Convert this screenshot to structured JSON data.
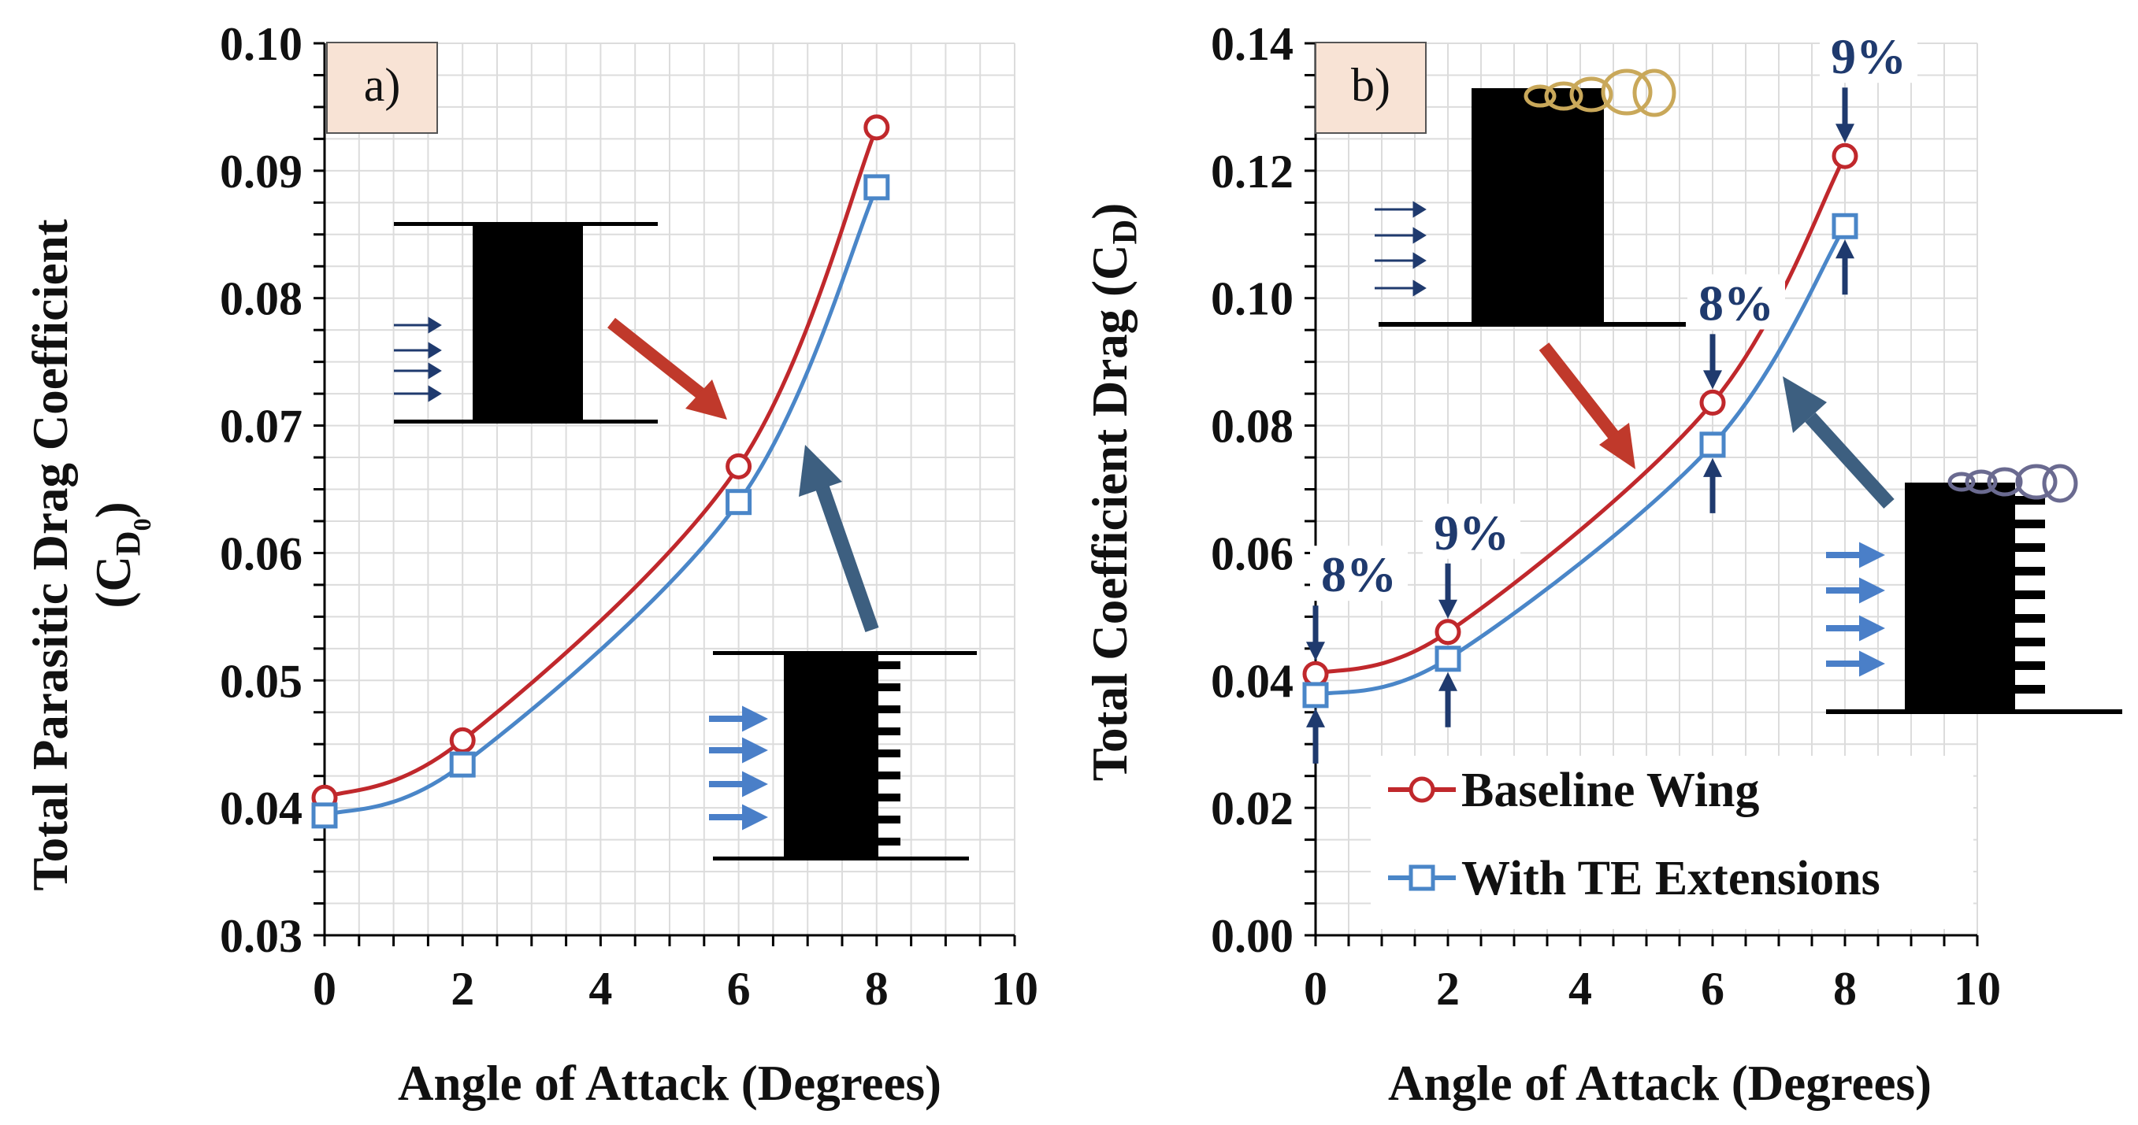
{
  "colors": {
    "baseline": "#c0282c",
    "te": "#4a86c8",
    "arrow_red": "#c0392b",
    "arrow_blue": "#3d5f80",
    "marker_arrow": "#1f3a6e",
    "label_box": "#f8e3d5",
    "grid": "#dcdcdc"
  },
  "chart_data": [
    {
      "type": "line",
      "panel_label": "a)",
      "xlabel": "Angle of Attack (Degrees)",
      "ylabel_line1": "Total Parasitic Drag Coefficient",
      "ylabel_line2_base": "(C",
      "ylabel_line2_sub": "D",
      "ylabel_line2_subsub": "0",
      "ylabel_line2_end": ")",
      "xlim": [
        0,
        10
      ],
      "ylim": [
        0.03,
        0.1
      ],
      "xticks": [
        0,
        2,
        4,
        6,
        8,
        10
      ],
      "xtick_labels": [
        "0",
        "2",
        "4",
        "6",
        "8",
        "10"
      ],
      "yticks": [
        0.03,
        0.04,
        0.05,
        0.06,
        0.07,
        0.08,
        0.09,
        0.1
      ],
      "ytick_labels": [
        "0.03",
        "0.04",
        "0.05",
        "0.06",
        "0.07",
        "0.08",
        "0.09",
        "0.10"
      ],
      "grid": true,
      "x": [
        0,
        2,
        6,
        8
      ],
      "series": [
        {
          "name": "Baseline Wing",
          "marker": "circle",
          "values": [
            0.0408,
            0.0453,
            0.0668,
            0.0934
          ]
        },
        {
          "name": "With TE Extensions",
          "marker": "square",
          "values": [
            0.0394,
            0.0434,
            0.064,
            0.0887
          ]
        }
      ]
    },
    {
      "type": "line",
      "panel_label": "b)",
      "xlabel": "Angle of Attack (Degrees)",
      "ylabel_line1_base": "Total Coefficient Drag (C",
      "ylabel_line1_sub": "D",
      "ylabel_line1_end": ")",
      "xlim": [
        0,
        10
      ],
      "ylim": [
        0.0,
        0.14
      ],
      "xticks": [
        0,
        2,
        4,
        6,
        8,
        10
      ],
      "xtick_labels": [
        "0",
        "2",
        "4",
        "6",
        "8",
        "10"
      ],
      "yticks": [
        0.0,
        0.02,
        0.04,
        0.06,
        0.08,
        0.1,
        0.12,
        0.14
      ],
      "ytick_labels": [
        "0.00",
        "0.02",
        "0.04",
        "0.06",
        "0.08",
        "0.10",
        "0.12",
        "0.14"
      ],
      "grid": true,
      "x": [
        0,
        2,
        6,
        8
      ],
      "series": [
        {
          "name": "Baseline Wing",
          "marker": "circle",
          "values": [
            0.041,
            0.0476,
            0.0836,
            0.1223
          ]
        },
        {
          "name": "With TE Extensions",
          "marker": "square",
          "values": [
            0.0377,
            0.0434,
            0.077,
            0.1113
          ]
        }
      ],
      "annotations": [
        {
          "x": 0,
          "text": "8%"
        },
        {
          "x": 2,
          "text": "9%"
        },
        {
          "x": 6,
          "text": "8%"
        },
        {
          "x": 8,
          "text": "9%"
        }
      ],
      "legend": {
        "position": "lower-right",
        "entries": [
          "Baseline Wing",
          "With TE Extensions"
        ]
      }
    }
  ]
}
